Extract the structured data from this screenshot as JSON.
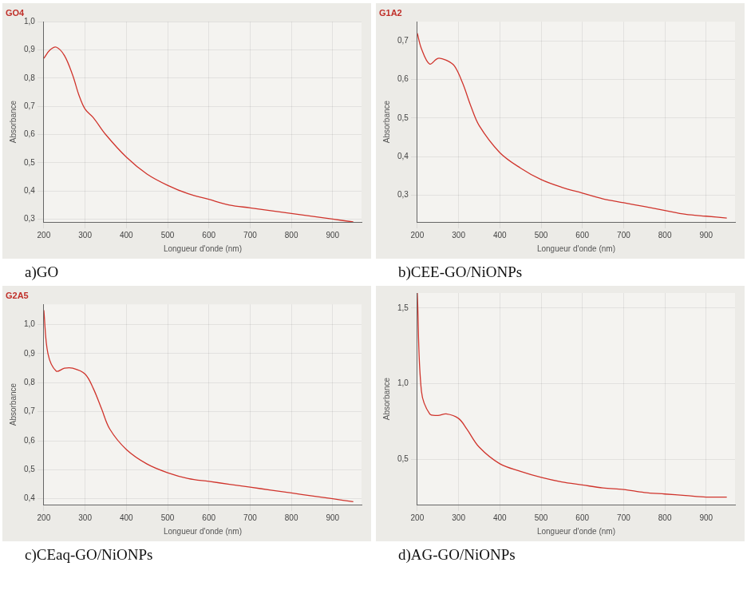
{
  "chart_data": [
    {
      "type": "line",
      "title": "GO4",
      "caption": "a)GO",
      "x_label": "Longueur d'onde (nm)",
      "y_label": "Absorbance",
      "x": [
        200,
        215,
        230,
        250,
        270,
        285,
        300,
        320,
        350,
        400,
        450,
        500,
        550,
        600,
        650,
        700,
        750,
        800,
        850,
        900,
        950
      ],
      "values": [
        0.87,
        0.9,
        0.91,
        0.88,
        0.81,
        0.74,
        0.69,
        0.66,
        0.6,
        0.52,
        0.46,
        0.42,
        0.39,
        0.37,
        0.35,
        0.34,
        0.33,
        0.32,
        0.31,
        0.3,
        0.29
      ],
      "color": "#d0342c",
      "xlim": [
        200,
        970
      ],
      "ylim": [
        0.29,
        1.0
      ],
      "xticks": [
        200,
        300,
        400,
        500,
        600,
        700,
        800,
        900
      ],
      "yticks": [
        {
          "value": 0.3,
          "label": "0,3"
        },
        {
          "value": 0.4,
          "label": "0,4"
        },
        {
          "value": 0.5,
          "label": "0,5"
        },
        {
          "value": 0.6,
          "label": "0,6"
        },
        {
          "value": 0.7,
          "label": "0,7"
        },
        {
          "value": 0.8,
          "label": "0,8"
        },
        {
          "value": 0.9,
          "label": "0,9"
        },
        {
          "value": 1.0,
          "label": "1,0"
        }
      ],
      "grid": true
    },
    {
      "type": "line",
      "title": "G1A2",
      "caption": "b)CEE-GO/NiONPs",
      "x_label": "Longueur d'onde (nm)",
      "y_label": "Absorbance",
      "x": [
        200,
        210,
        230,
        250,
        270,
        290,
        310,
        330,
        350,
        400,
        450,
        500,
        550,
        600,
        650,
        700,
        750,
        800,
        850,
        900,
        950
      ],
      "values": [
        0.72,
        0.68,
        0.64,
        0.655,
        0.65,
        0.635,
        0.59,
        0.53,
        0.48,
        0.41,
        0.37,
        0.34,
        0.32,
        0.305,
        0.29,
        0.28,
        0.27,
        0.26,
        0.25,
        0.245,
        0.24
      ],
      "color": "#d0342c",
      "xlim": [
        200,
        970
      ],
      "ylim": [
        0.23,
        0.75
      ],
      "xticks": [
        200,
        300,
        400,
        500,
        600,
        700,
        800,
        900
      ],
      "yticks": [
        {
          "value": 0.3,
          "label": "0,3"
        },
        {
          "value": 0.4,
          "label": "0,4"
        },
        {
          "value": 0.5,
          "label": "0,5"
        },
        {
          "value": 0.6,
          "label": "0,6"
        },
        {
          "value": 0.7,
          "label": "0,7"
        }
      ],
      "grid": true
    },
    {
      "type": "line",
      "title": "G2A5",
      "caption": "c)CEaq-GO/NiONPs",
      "x_label": "Longueur d'onde (nm)",
      "y_label": "Absorbance",
      "x": [
        200,
        210,
        230,
        250,
        270,
        300,
        320,
        340,
        360,
        400,
        450,
        500,
        550,
        600,
        650,
        700,
        750,
        800,
        850,
        900,
        950
      ],
      "values": [
        1.05,
        0.9,
        0.84,
        0.85,
        0.85,
        0.83,
        0.78,
        0.71,
        0.64,
        0.57,
        0.52,
        0.49,
        0.47,
        0.46,
        0.45,
        0.44,
        0.43,
        0.42,
        0.41,
        0.4,
        0.39
      ],
      "color": "#d0342c",
      "xlim": [
        200,
        970
      ],
      "ylim": [
        0.38,
        1.07
      ],
      "xticks": [
        200,
        300,
        400,
        500,
        600,
        700,
        800,
        900
      ],
      "yticks": [
        {
          "value": 0.4,
          "label": "0,4"
        },
        {
          "value": 0.5,
          "label": "0,5"
        },
        {
          "value": 0.6,
          "label": "0,6"
        },
        {
          "value": 0.7,
          "label": "0,7"
        },
        {
          "value": 0.8,
          "label": "0,8"
        },
        {
          "value": 0.9,
          "label": "0,9"
        },
        {
          "value": 1.0,
          "label": "1,0"
        }
      ],
      "grid": true
    },
    {
      "type": "line",
      "caption": "d)AG-GO/NiONPs",
      "x_label": "Longueur d'onde (nm)",
      "y_label": "Absorbance",
      "x": [
        200,
        210,
        230,
        250,
        270,
        300,
        320,
        350,
        400,
        450,
        500,
        550,
        600,
        650,
        700,
        750,
        800,
        850,
        900,
        950
      ],
      "values": [
        1.6,
        0.95,
        0.8,
        0.79,
        0.8,
        0.77,
        0.7,
        0.58,
        0.47,
        0.42,
        0.38,
        0.35,
        0.33,
        0.31,
        0.3,
        0.28,
        0.27,
        0.26,
        0.25,
        0.25
      ],
      "color": "#d0342c",
      "xlim": [
        200,
        970
      ],
      "ylim": [
        0.2,
        1.6
      ],
      "xticks": [
        200,
        300,
        400,
        500,
        600,
        700,
        800,
        900
      ],
      "yticks": [
        {
          "value": 0.5,
          "label": "0,5"
        },
        {
          "value": 1.0,
          "label": "1,0"
        },
        {
          "value": 1.5,
          "label": "1,5"
        }
      ],
      "grid": true
    }
  ]
}
